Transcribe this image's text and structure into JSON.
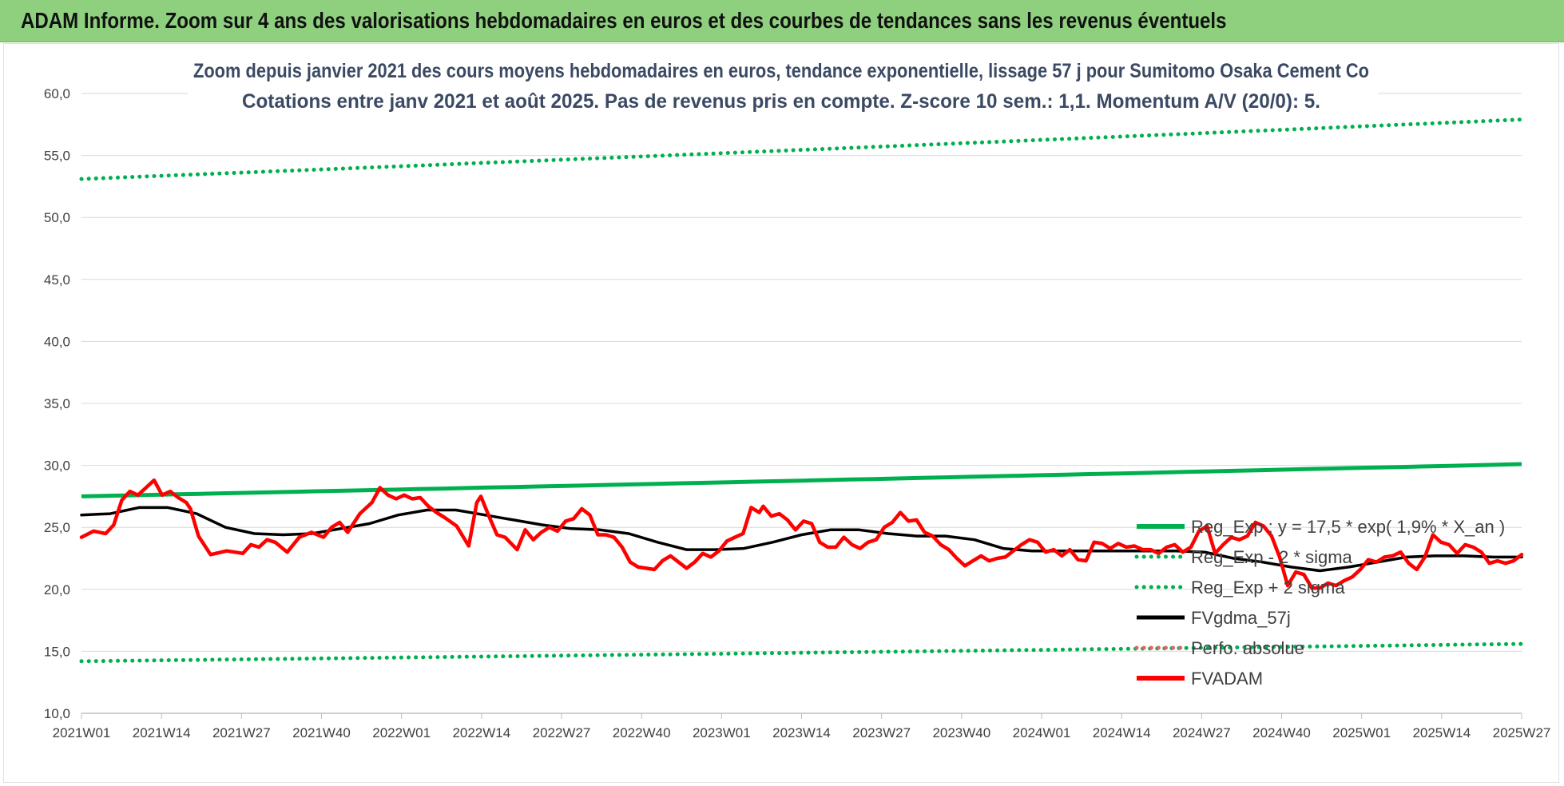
{
  "banner": {
    "title": "ADAM Informe. Zoom sur 4 ans des valorisations hebdomadaires en euros et des courbes de tendances sans les revenus éventuels"
  },
  "colors": {
    "banner_bg": "#8fd07e",
    "reg_exp": "#00b050",
    "sigma_bands": "#00b050",
    "fvgdma": "#000000",
    "perfo": "#e06666",
    "fvadam": "#ff0000"
  },
  "chart_data": {
    "type": "line",
    "title_lines": [
      "Zoom depuis janvier 2021 des cours moyens hebdomadaires en euros, tendance exponentielle, lissage 57 j pour Sumitomo Osaka Cement Co",
      "Cotations entre janv 2021 et août 2025.  Pas de revenus pris en compte. Z-score 10 sem.: 1,1. Momentum A/V (20/0): 5."
    ],
    "x_tick_labels": [
      "2021W01",
      "2021W14",
      "2021W27",
      "2021W40",
      "2022W01",
      "2022W14",
      "2022W27",
      "2022W40",
      "2023W01",
      "2023W14",
      "2023W27",
      "2023W40",
      "2024W01",
      "2024W14",
      "2024W27",
      "2024W40",
      "2025W01",
      "2025W14",
      "2025W27"
    ],
    "x_index_range": [
      0,
      238
    ],
    "ylim": [
      10,
      60
    ],
    "y_ticks": [
      "10,0",
      "15,0",
      "20,0",
      "25,0",
      "30,0",
      "35,0",
      "40,0",
      "45,0",
      "50,0",
      "55,0",
      "60,0"
    ],
    "grid": "horizontal",
    "legend_position": "right",
    "series": [
      {
        "name": "Reg_Exp : y = 17,5 * exp( 1,9% * X_an )",
        "style": "solid",
        "start": 27.5,
        "end": 30.1
      },
      {
        "name": "Reg_Exp - 2 * sigma",
        "style": "dotted",
        "start": 14.2,
        "end": 15.6
      },
      {
        "name": "Reg_Exp + 2 sigma",
        "style": "dotted",
        "start": 53.1,
        "end": 57.9
      },
      {
        "name": "FVgdma_57j",
        "style": "solid",
        "points": [
          [
            0,
            26.0
          ],
          [
            6,
            26.1
          ],
          [
            12,
            26.6
          ],
          [
            18,
            26.6
          ],
          [
            24,
            26.1
          ],
          [
            30,
            25.0
          ],
          [
            36,
            24.5
          ],
          [
            42,
            24.4
          ],
          [
            48,
            24.5
          ],
          [
            54,
            24.9
          ],
          [
            60,
            25.3
          ],
          [
            66,
            26.0
          ],
          [
            72,
            26.4
          ],
          [
            78,
            26.4
          ],
          [
            84,
            26.0
          ],
          [
            90,
            25.6
          ],
          [
            96,
            25.2
          ],
          [
            102,
            24.9
          ],
          [
            108,
            24.8
          ],
          [
            114,
            24.5
          ],
          [
            120,
            23.8
          ],
          [
            126,
            23.2
          ],
          [
            132,
            23.2
          ],
          [
            138,
            23.3
          ],
          [
            144,
            23.8
          ],
          [
            150,
            24.4
          ],
          [
            156,
            24.8
          ],
          [
            162,
            24.8
          ],
          [
            168,
            24.5
          ],
          [
            174,
            24.3
          ],
          [
            180,
            24.3
          ],
          [
            186,
            24.0
          ],
          [
            192,
            23.3
          ],
          [
            198,
            23.1
          ],
          [
            204,
            23.1
          ],
          [
            210,
            23.1
          ],
          [
            216,
            23.1
          ],
          [
            222,
            23.1
          ],
          [
            228,
            23.1
          ],
          [
            234,
            23.0
          ],
          [
            240,
            22.5
          ],
          [
            246,
            22.2
          ],
          [
            252,
            21.8
          ],
          [
            258,
            21.5
          ],
          [
            264,
            21.8
          ],
          [
            270,
            22.2
          ],
          [
            276,
            22.6
          ],
          [
            282,
            22.7
          ],
          [
            288,
            22.7
          ],
          [
            294,
            22.6
          ],
          [
            300,
            22.6
          ]
        ]
      },
      {
        "name": "Perfo. absolue",
        "style": "dotted"
      },
      {
        "name": "FVADAM",
        "style": "solid",
        "points": [
          [
            0,
            24.2
          ],
          [
            3,
            24.7
          ],
          [
            6,
            24.5
          ],
          [
            8,
            25.2
          ],
          [
            10,
            27.2
          ],
          [
            12,
            27.9
          ],
          [
            14,
            27.6
          ],
          [
            16,
            28.2
          ],
          [
            18,
            28.8
          ],
          [
            20,
            27.6
          ],
          [
            22,
            27.9
          ],
          [
            24,
            27.4
          ],
          [
            26,
            27.0
          ],
          [
            27,
            26.5
          ],
          [
            29,
            24.3
          ],
          [
            32,
            22.8
          ],
          [
            36,
            23.1
          ],
          [
            38,
            23.0
          ],
          [
            40,
            22.9
          ],
          [
            42,
            23.6
          ],
          [
            44,
            23.4
          ],
          [
            46,
            24.0
          ],
          [
            48,
            23.8
          ],
          [
            51,
            23.0
          ],
          [
            54,
            24.2
          ],
          [
            57,
            24.6
          ],
          [
            60,
            24.2
          ],
          [
            62,
            25.0
          ],
          [
            64,
            25.4
          ],
          [
            66,
            24.6
          ],
          [
            69,
            26.1
          ],
          [
            72,
            27.0
          ],
          [
            74,
            28.2
          ],
          [
            76,
            27.6
          ],
          [
            78,
            27.3
          ],
          [
            80,
            27.6
          ],
          [
            82,
            27.3
          ],
          [
            84,
            27.4
          ],
          [
            86,
            26.7
          ],
          [
            88,
            26.2
          ],
          [
            90,
            25.8
          ],
          [
            93,
            25.1
          ],
          [
            96,
            23.5
          ],
          [
            98,
            27.0
          ],
          [
            99,
            27.5
          ],
          [
            101,
            25.9
          ],
          [
            103,
            24.4
          ],
          [
            105,
            24.2
          ],
          [
            108,
            23.2
          ],
          [
            110,
            24.8
          ],
          [
            112,
            24.0
          ],
          [
            114,
            24.6
          ],
          [
            116,
            25.0
          ],
          [
            118,
            24.7
          ],
          [
            120,
            25.5
          ],
          [
            122,
            25.7
          ],
          [
            124,
            26.5
          ],
          [
            126,
            26.0
          ],
          [
            128,
            24.4
          ],
          [
            130,
            24.4
          ],
          [
            132,
            24.2
          ],
          [
            134,
            23.4
          ],
          [
            136,
            22.2
          ],
          [
            138,
            21.8
          ],
          [
            140,
            21.7
          ],
          [
            142,
            21.6
          ],
          [
            144,
            22.3
          ],
          [
            146,
            22.7
          ],
          [
            148,
            22.2
          ],
          [
            150,
            21.7
          ],
          [
            152,
            22.2
          ],
          [
            154,
            22.9
          ],
          [
            156,
            22.6
          ],
          [
            158,
            23.1
          ],
          [
            160,
            23.9
          ],
          [
            162,
            24.2
          ],
          [
            164,
            24.5
          ],
          [
            166,
            26.6
          ],
          [
            168,
            26.2
          ],
          [
            169,
            26.7
          ],
          [
            171,
            25.9
          ],
          [
            173,
            26.1
          ],
          [
            175,
            25.6
          ],
          [
            177,
            24.8
          ],
          [
            179,
            25.5
          ],
          [
            181,
            25.3
          ],
          [
            183,
            23.8
          ],
          [
            185,
            23.4
          ],
          [
            187,
            23.4
          ],
          [
            189,
            24.2
          ],
          [
            191,
            23.6
          ],
          [
            193,
            23.3
          ],
          [
            195,
            23.8
          ],
          [
            197,
            24.0
          ],
          [
            199,
            25.0
          ],
          [
            201,
            25.4
          ],
          [
            203,
            26.2
          ],
          [
            205,
            25.5
          ],
          [
            207,
            25.6
          ],
          [
            209,
            24.6
          ],
          [
            211,
            24.3
          ],
          [
            213,
            23.6
          ],
          [
            215,
            23.2
          ],
          [
            217,
            22.5
          ],
          [
            219,
            21.9
          ],
          [
            221,
            22.3
          ],
          [
            223,
            22.7
          ],
          [
            225,
            22.3
          ],
          [
            227,
            22.5
          ],
          [
            229,
            22.6
          ],
          [
            231,
            23.1
          ],
          [
            233,
            23.6
          ],
          [
            235,
            24.0
          ],
          [
            237,
            23.8
          ],
          [
            239,
            23.0
          ],
          [
            241,
            23.2
          ],
          [
            243,
            22.7
          ],
          [
            245,
            23.2
          ],
          [
            247,
            22.4
          ],
          [
            249,
            22.3
          ],
          [
            251,
            23.8
          ],
          [
            253,
            23.7
          ],
          [
            255,
            23.3
          ],
          [
            257,
            23.7
          ],
          [
            259,
            23.4
          ],
          [
            261,
            23.5
          ],
          [
            263,
            23.2
          ],
          [
            265,
            23.2
          ],
          [
            267,
            22.9
          ],
          [
            269,
            23.4
          ],
          [
            271,
            23.6
          ],
          [
            273,
            23.0
          ],
          [
            275,
            23.4
          ],
          [
            277,
            24.7
          ],
          [
            279,
            25.1
          ],
          [
            281,
            22.9
          ],
          [
            283,
            23.6
          ],
          [
            285,
            24.2
          ],
          [
            287,
            24.0
          ],
          [
            289,
            24.3
          ],
          [
            291,
            25.4
          ],
          [
            293,
            25.1
          ],
          [
            295,
            24.3
          ],
          [
            297,
            22.6
          ],
          [
            299,
            20.3
          ],
          [
            301,
            21.4
          ],
          [
            303,
            21.2
          ],
          [
            305,
            20.1
          ],
          [
            307,
            20.1
          ],
          [
            309,
            20.5
          ],
          [
            311,
            20.3
          ],
          [
            313,
            20.7
          ],
          [
            315,
            21.0
          ],
          [
            317,
            21.6
          ],
          [
            319,
            22.4
          ],
          [
            321,
            22.2
          ],
          [
            323,
            22.6
          ],
          [
            325,
            22.7
          ],
          [
            327,
            23.0
          ],
          [
            329,
            22.1
          ],
          [
            331,
            21.6
          ],
          [
            333,
            22.6
          ],
          [
            335,
            24.4
          ],
          [
            337,
            23.8
          ],
          [
            339,
            23.6
          ],
          [
            341,
            22.9
          ],
          [
            343,
            23.6
          ],
          [
            345,
            23.4
          ],
          [
            347,
            23.0
          ],
          [
            349,
            22.1
          ],
          [
            351,
            22.3
          ],
          [
            353,
            22.1
          ],
          [
            355,
            22.3
          ],
          [
            357,
            22.8
          ]
        ]
      }
    ]
  }
}
